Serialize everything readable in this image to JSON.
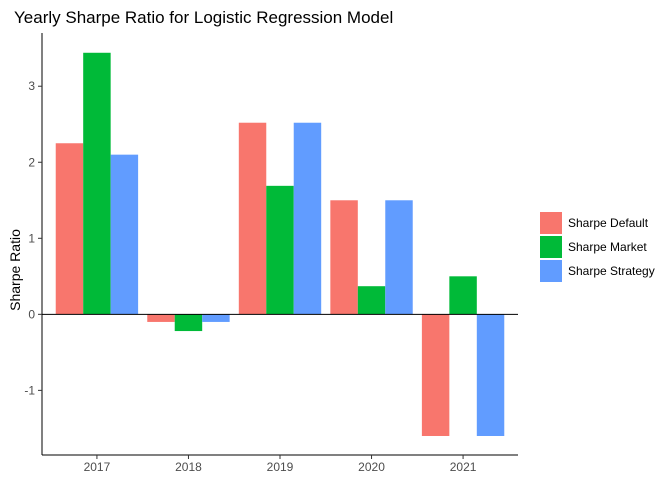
{
  "chart_data": {
    "type": "bar",
    "title": "Yearly Sharpe Ratio for Logistic Regression Model",
    "xlabel": "",
    "ylabel": "Sharpe Ratio",
    "categories": [
      "2017",
      "2018",
      "2019",
      "2020",
      "2021"
    ],
    "series": [
      {
        "name": "Sharpe Default",
        "color": "#F8766D",
        "values": [
          2.25,
          -0.1,
          2.52,
          1.5,
          -1.6
        ]
      },
      {
        "name": "Sharpe Market",
        "color": "#00BA38",
        "values": [
          3.44,
          -0.22,
          1.69,
          0.37,
          0.5
        ]
      },
      {
        "name": "Sharpe Strategy",
        "color": "#619CFF",
        "values": [
          2.1,
          -0.1,
          2.52,
          1.5,
          -1.6
        ]
      }
    ],
    "ylim": [
      -1.85,
      3.7
    ],
    "yticks": [
      -1,
      0,
      1,
      2,
      3
    ],
    "grid": false,
    "legend_position": "right",
    "zero_line": true
  }
}
